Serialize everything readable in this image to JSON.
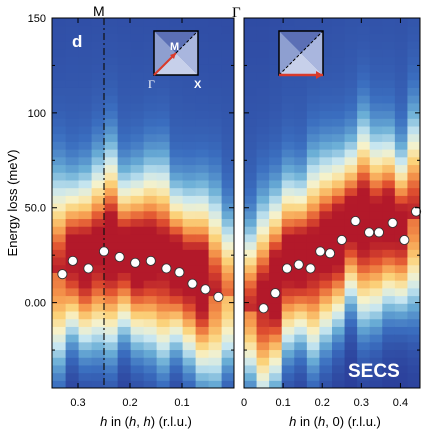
{
  "chart_data": {
    "type": "heatmap",
    "panel_letter": "d",
    "watermark": "SECS",
    "ylabel": "Energy loss (meV)",
    "ylim": [
      -45,
      150
    ],
    "yticks": [
      0,
      50,
      100,
      150
    ],
    "ytick_labels": [
      "0.00",
      "50.0",
      "100",
      "150"
    ],
    "top_labels": {
      "M": "M",
      "Gamma": "Γ"
    },
    "colormap": [
      "#2b3f9a",
      "#3b6fc0",
      "#6aaed6",
      "#c7e6f0",
      "#f7f2c9",
      "#fbd27a",
      "#f69a4e",
      "#e0502f",
      "#b3192a"
    ],
    "panels": [
      {
        "name": "left",
        "xlabel_parts": [
          "h",
          " in (",
          "h",
          ", ",
          "h",
          ") (r.l.u.)"
        ],
        "xlim": [
          0.35,
          0.0
        ],
        "xticks": [
          0.3,
          0.2,
          0.1
        ],
        "xtick_labels": [
          "0.3",
          "0.2",
          "0.1"
        ],
        "vline_x": 0.25,
        "inset": {
          "labels": [
            "M",
            "Γ",
            "X"
          ]
        },
        "points": [
          {
            "x": 0.33,
            "y": 15
          },
          {
            "x": 0.31,
            "y": 22
          },
          {
            "x": 0.28,
            "y": 18
          },
          {
            "x": 0.25,
            "y": 27
          },
          {
            "x": 0.22,
            "y": 24
          },
          {
            "x": 0.19,
            "y": 21
          },
          {
            "x": 0.16,
            "y": 22
          },
          {
            "x": 0.13,
            "y": 18
          },
          {
            "x": 0.105,
            "y": 16
          },
          {
            "x": 0.08,
            "y": 10
          },
          {
            "x": 0.055,
            "y": 7
          },
          {
            "x": 0.03,
            "y": 3
          }
        ]
      },
      {
        "name": "right",
        "xlabel_parts": [
          "h",
          " in (",
          "h",
          ", 0) (r.l.u.)"
        ],
        "xlim": [
          0.0,
          0.45
        ],
        "xticks": [
          0.0,
          0.1,
          0.2,
          0.3,
          0.4
        ],
        "xtick_labels": [
          "0",
          "0.1",
          "0.2",
          "0.3",
          "0.4"
        ],
        "inset": {
          "labels": []
        },
        "points": [
          {
            "x": 0.05,
            "y": -3
          },
          {
            "x": 0.08,
            "y": 5
          },
          {
            "x": 0.11,
            "y": 18
          },
          {
            "x": 0.14,
            "y": 20
          },
          {
            "x": 0.17,
            "y": 18
          },
          {
            "x": 0.195,
            "y": 27
          },
          {
            "x": 0.22,
            "y": 26
          },
          {
            "x": 0.25,
            "y": 33
          },
          {
            "x": 0.285,
            "y": 43
          },
          {
            "x": 0.32,
            "y": 37
          },
          {
            "x": 0.345,
            "y": 37
          },
          {
            "x": 0.38,
            "y": 42
          },
          {
            "x": 0.41,
            "y": 33
          },
          {
            "x": 0.44,
            "y": 48
          }
        ]
      }
    ]
  }
}
